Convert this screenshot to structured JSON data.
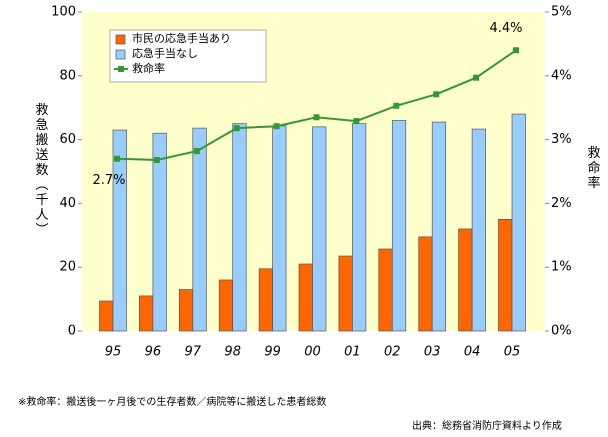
{
  "chart_data": {
    "type": "bar",
    "y_label": "救急搬送数（千人）",
    "y2_label": "救命率",
    "categories": [
      "95",
      "96",
      "97",
      "98",
      "99",
      "00",
      "01",
      "02",
      "03",
      "04",
      "05"
    ],
    "series": [
      {
        "name": "市民の応急手当あり",
        "type": "bar",
        "color": "#ff6600",
        "values": [
          9.4,
          11,
          13,
          16,
          19.5,
          21,
          23.5,
          25.7,
          29.5,
          32,
          35
        ]
      },
      {
        "name": "応急手当なし",
        "type": "bar",
        "color": "#99ccff",
        "values": [
          63,
          62,
          63.6,
          65,
          64.3,
          64,
          65,
          66,
          65.5,
          63.3,
          68
        ]
      },
      {
        "name": "救命率",
        "type": "line",
        "axis": "y2",
        "color": "#339933",
        "values": [
          2.7,
          2.68,
          2.82,
          3.18,
          3.21,
          3.35,
          3.29,
          3.53,
          3.71,
          3.97,
          4.4
        ],
        "value_labels": [
          "2.7%",
          null,
          null,
          null,
          null,
          null,
          null,
          null,
          null,
          null,
          "4.4%"
        ]
      }
    ],
    "ylim": [
      0,
      100
    ],
    "yticks": [
      0,
      20,
      40,
      60,
      80,
      100
    ],
    "y2lim": [
      0,
      5
    ],
    "y2ticks": [
      {
        "value": 0,
        "label": "0%"
      },
      {
        "value": 1,
        "label": "1%"
      },
      {
        "value": 2,
        "label": "2%"
      },
      {
        "value": 3,
        "label": "3%"
      },
      {
        "value": 4,
        "label": "4%"
      },
      {
        "value": 5,
        "label": "5%"
      }
    ],
    "legend": "upper left",
    "background": "#ffffcc",
    "footnote": "※救命率：搬送後一ヶ月後での生存者数／病院等に搬送した患者総数",
    "source": "出典：総務省消防庁資料より作成"
  }
}
